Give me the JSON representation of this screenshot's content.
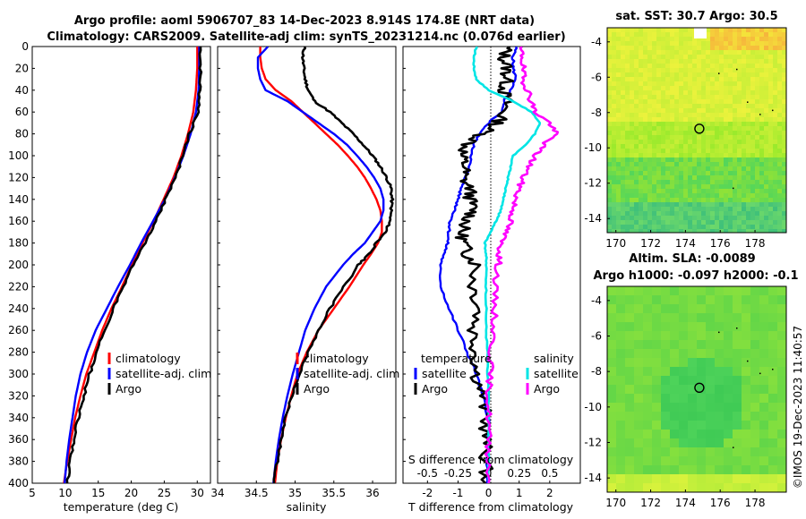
{
  "figure": {
    "title_line1": "Argo profile: aoml 5906707_83 14-Dec-2023 8.914S 174.8E (NRT data)",
    "title_line2": "Climatology: CARS2009. Satellite-adj clim: synTS_20231214.nc (0.076d earlier)",
    "credit": "©IMOS 19-Dec-2023 11:40:57"
  },
  "colors": {
    "climatology": "#ff0000",
    "satellite": "#0000ff",
    "argo": "#000000",
    "sal_satellite": "#00e5e5",
    "sal_argo": "#ff00ff"
  },
  "chart_data": [
    {
      "id": "temperature",
      "type": "line",
      "xlabel": "temperature (deg C)",
      "ylabel": "",
      "xlim": [
        5,
        32
      ],
      "ylim": [
        400,
        0
      ],
      "xticks": [
        "5",
        "10",
        "15",
        "20",
        "25",
        "30"
      ],
      "xtick_values": [
        5,
        10,
        15,
        20,
        25,
        30
      ],
      "yticks": [
        "0",
        "20",
        "40",
        "60",
        "80",
        "100",
        "120",
        "140",
        "160",
        "180",
        "200",
        "220",
        "240",
        "260",
        "280",
        "300",
        "320",
        "340",
        "360",
        "380",
        "400"
      ],
      "legend": [
        "climatology",
        "satellite-adj. clim",
        "Argo"
      ],
      "depth": [
        0,
        20,
        40,
        60,
        80,
        100,
        120,
        140,
        160,
        180,
        200,
        220,
        240,
        260,
        280,
        300,
        320,
        340,
        360,
        380,
        400
      ],
      "series": [
        {
          "name": "climatology",
          "color": "#ff0000",
          "values": [
            30.0,
            30.0,
            29.8,
            29.4,
            28.6,
            27.6,
            26.4,
            24.9,
            23.4,
            21.7,
            20.1,
            18.6,
            17.0,
            15.6,
            14.4,
            13.2,
            12.3,
            11.5,
            10.9,
            10.3,
            9.8
          ]
        },
        {
          "name": "satellite-adj. clim",
          "color": "#0000ff",
          "values": [
            30.3,
            30.3,
            30.2,
            29.8,
            29.0,
            27.9,
            26.6,
            25.1,
            23.3,
            21.5,
            19.8,
            18.0,
            16.3,
            14.6,
            13.3,
            12.3,
            11.6,
            11.1,
            10.6,
            10.2,
            9.9
          ]
        },
        {
          "name": "Argo",
          "color": "#000000",
          "values": [
            30.5,
            30.5,
            30.4,
            30.2,
            28.8,
            27.8,
            26.7,
            25.2,
            23.7,
            22.2,
            20.2,
            18.8,
            17.3,
            15.9,
            14.8,
            13.7,
            12.8,
            12.0,
            11.3,
            10.8,
            10.3
          ]
        }
      ]
    },
    {
      "id": "salinity",
      "type": "line",
      "xlabel": "salinity",
      "ylabel": "",
      "xlim": [
        34,
        36.3
      ],
      "ylim": [
        400,
        0
      ],
      "xticks": [
        "34",
        "34.5",
        "35",
        "35.5",
        "36"
      ],
      "xtick_values": [
        34,
        34.5,
        35,
        35.5,
        36
      ],
      "legend": [
        "climatology",
        "satellite-adj. clim",
        "Argo"
      ],
      "depth": [
        0,
        10,
        20,
        30,
        40,
        50,
        60,
        70,
        80,
        90,
        100,
        110,
        120,
        130,
        140,
        150,
        160,
        170,
        180,
        190,
        200,
        220,
        240,
        260,
        280,
        300,
        320,
        340,
        360,
        380,
        400
      ],
      "series": [
        {
          "name": "climatology",
          "color": "#ff0000",
          "values": [
            34.55,
            34.55,
            34.57,
            34.62,
            34.75,
            34.95,
            35.1,
            35.25,
            35.4,
            35.55,
            35.68,
            35.8,
            35.9,
            35.98,
            36.05,
            36.1,
            36.12,
            36.12,
            36.07,
            35.98,
            35.88,
            35.7,
            35.5,
            35.3,
            35.15,
            35.03,
            34.95,
            34.88,
            34.82,
            34.77,
            34.74
          ]
        },
        {
          "name": "satellite-adj. clim",
          "color": "#0000ff",
          "values": [
            34.65,
            34.52,
            34.52,
            34.55,
            34.62,
            34.9,
            35.1,
            35.3,
            35.5,
            35.67,
            35.8,
            35.92,
            36.02,
            36.1,
            36.14,
            36.14,
            36.1,
            36.0,
            35.9,
            35.75,
            35.62,
            35.4,
            35.25,
            35.13,
            35.05,
            34.97,
            34.9,
            34.84,
            34.79,
            34.75,
            34.72
          ]
        },
        {
          "name": "Argo",
          "color": "#000000",
          "values": [
            35.12,
            35.1,
            35.11,
            35.13,
            35.17,
            35.25,
            35.45,
            35.6,
            35.75,
            35.88,
            36.0,
            36.1,
            36.18,
            36.24,
            36.25,
            36.24,
            36.22,
            36.17,
            36.05,
            35.95,
            35.82,
            35.63,
            35.45,
            35.3,
            35.17,
            35.05,
            34.96,
            34.88,
            34.82,
            34.77,
            34.73
          ]
        }
      ]
    },
    {
      "id": "difference",
      "type": "line",
      "xlabel": "T difference from climatology",
      "top_xlabel": "S difference from climatology",
      "xlim": [
        -2.8,
        3.0
      ],
      "ylim": [
        400,
        0
      ],
      "xticks": [
        "-2",
        "-1",
        "0",
        "1",
        "2"
      ],
      "xtick_values": [
        -2,
        -1,
        0,
        1,
        2
      ],
      "s_xticks": [
        "-0.5",
        "-0.25",
        "0",
        "0.25",
        "0.5"
      ],
      "s_xtick_values": [
        -0.5,
        -0.25,
        0,
        0.25,
        0.5
      ],
      "legend_temperature": [
        "temperature",
        "satellite",
        "Argo"
      ],
      "legend_salinity": [
        "salinity",
        "satellite",
        "Argo"
      ],
      "depth": [
        0,
        10,
        20,
        30,
        40,
        50,
        60,
        70,
        80,
        90,
        100,
        110,
        120,
        130,
        140,
        150,
        160,
        170,
        180,
        190,
        200,
        220,
        240,
        260,
        280,
        300,
        320,
        340,
        360,
        380,
        400
      ],
      "series": [
        {
          "name": "temperature satellite",
          "color": "#0000ff",
          "values": [
            0.9,
            0.8,
            0.8,
            0.9,
            0.7,
            0.5,
            0.4,
            0.0,
            -0.3,
            -0.5,
            -0.55,
            -0.65,
            -0.75,
            -0.9,
            -1.0,
            -1.1,
            -1.25,
            -1.3,
            -1.35,
            -1.45,
            -1.6,
            -1.55,
            -1.3,
            -1.0,
            -0.7,
            -0.4,
            -0.2,
            0.0,
            0.0,
            -0.05,
            -0.05
          ]
        },
        {
          "name": "temperature Argo",
          "color": "#000000",
          "values": [
            0.6,
            0.5,
            0.6,
            0.6,
            0.5,
            0.6,
            0.5,
            0.3,
            -0.2,
            -0.7,
            -0.9,
            -0.75,
            -0.85,
            -0.6,
            -0.6,
            -0.5,
            -0.7,
            -0.9,
            -0.8,
            -0.7,
            -0.4,
            -0.5,
            -0.3,
            -0.5,
            -0.4,
            -0.4,
            -0.2,
            -0.1,
            -0.1,
            -0.1,
            -0.1
          ]
        },
        {
          "name": "salinity satellite",
          "color": "#00e5e5",
          "values": [
            -0.1,
            -0.12,
            -0.12,
            -0.1,
            0.0,
            0.2,
            0.35,
            0.42,
            0.38,
            0.3,
            0.2,
            0.18,
            0.16,
            0.14,
            0.12,
            0.1,
            0.06,
            0.02,
            -0.03,
            -0.02,
            -0.02,
            -0.02,
            -0.02,
            -0.02,
            -0.01,
            -0.01,
            0.0,
            0.0,
            0.0,
            0.0,
            0.0
          ]
        },
        {
          "name": "salinity Argo",
          "color": "#ff00ff",
          "values": [
            0.25,
            0.28,
            0.28,
            0.28,
            0.32,
            0.35,
            0.38,
            0.5,
            0.55,
            0.45,
            0.38,
            0.33,
            0.28,
            0.25,
            0.22,
            0.2,
            0.18,
            0.14,
            0.1,
            0.09,
            0.08,
            0.05,
            0.05,
            0.04,
            0.02,
            0.01,
            0.0,
            0.0,
            0.0,
            0.0,
            0.0
          ]
        }
      ]
    },
    {
      "id": "sst_map",
      "type": "heatmap",
      "title": "sat. SST: 30.7 Argo: 30.5",
      "xlim": [
        169.5,
        179.8
      ],
      "ylim": [
        -14.8,
        -3.2
      ],
      "xticks": [
        "170",
        "172",
        "174",
        "176",
        "178"
      ],
      "xtick_values": [
        170,
        172,
        174,
        176,
        178
      ],
      "yticks": [
        "-4",
        "-6",
        "-8",
        "-10",
        "-12",
        "-14"
      ],
      "ytick_values": [
        -4,
        -6,
        -8,
        -10,
        -12,
        -14
      ],
      "marker": {
        "lon": 174.8,
        "lat": -8.914
      }
    },
    {
      "id": "sla_map",
      "type": "heatmap",
      "title": "Altim. SLA: -0.0089",
      "subtitle": "Argo h1000: -0.097 h2000: -0.1",
      "xlim": [
        169.5,
        179.8
      ],
      "ylim": [
        -14.8,
        -3.2
      ],
      "xticks": [
        "170",
        "172",
        "174",
        "176",
        "178"
      ],
      "xtick_values": [
        170,
        172,
        174,
        176,
        178
      ],
      "yticks": [
        "-4",
        "-6",
        "-8",
        "-10",
        "-12",
        "-14"
      ],
      "ytick_values": [
        -4,
        -6,
        -8,
        -10,
        -12,
        -14
      ],
      "marker": {
        "lon": 174.8,
        "lat": -8.914
      }
    }
  ]
}
